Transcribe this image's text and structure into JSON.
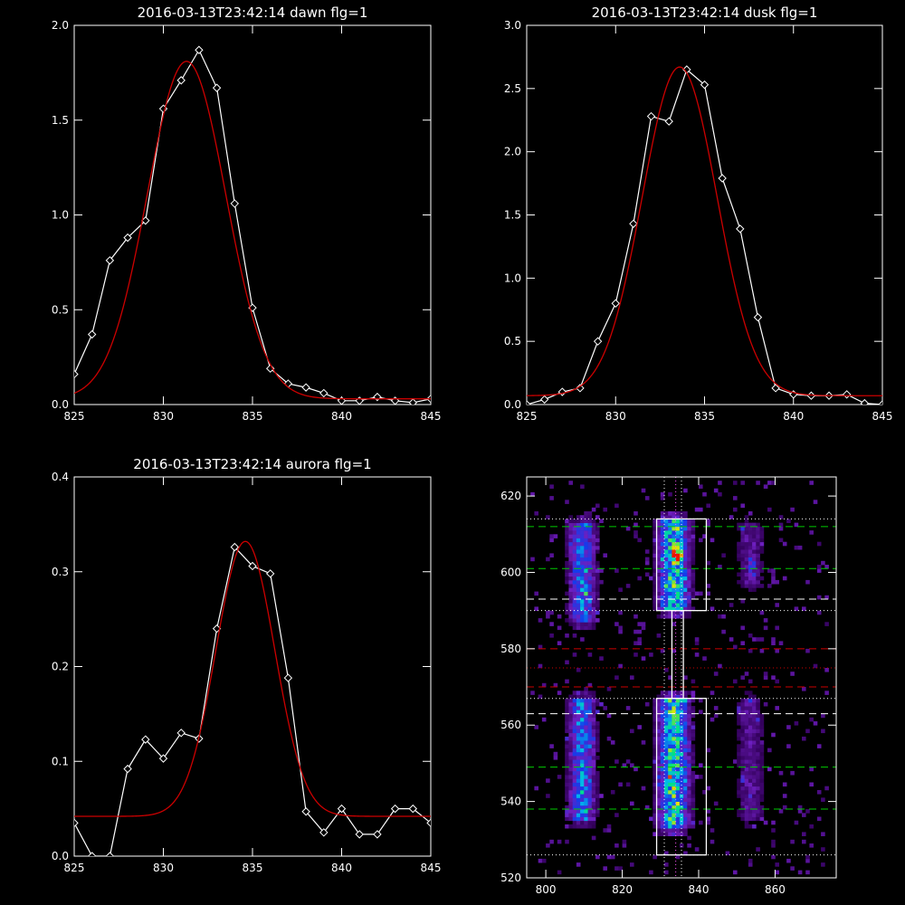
{
  "chart_data": [
    {
      "type": "line",
      "title": "2016-03-13T23:42:14 dawn flg=1",
      "xlim": [
        825,
        845
      ],
      "ylim": [
        0,
        2.0
      ],
      "xticks": [
        "825",
        "830",
        "835",
        "840",
        "845"
      ],
      "yticks": [
        "0.0",
        "0.5",
        "1.0",
        "1.5",
        "2.0"
      ],
      "series": [
        {
          "color": "#ffffff",
          "marker": "diamond",
          "x": [
            825,
            826,
            827,
            828,
            829,
            830,
            831,
            832,
            833,
            834,
            835,
            836,
            837,
            838,
            839,
            840,
            841,
            842,
            843,
            844,
            845
          ],
          "y": [
            0.16,
            0.37,
            0.76,
            0.88,
            0.97,
            1.56,
            1.71,
            1.87,
            1.67,
            1.06,
            0.51,
            0.19,
            0.11,
            0.09,
            0.06,
            0.02,
            0.02,
            0.04,
            0.02,
            0.01,
            0.03
          ]
        },
        {
          "color": "#cc0000",
          "fit": "gaussian",
          "amplitude": 1.78,
          "center": 831.3,
          "sigma": 2.2,
          "offset": 0.03
        }
      ]
    },
    {
      "type": "line",
      "title": "2016-03-13T23:42:14 dusk flg=1",
      "xlim": [
        825,
        845
      ],
      "ylim": [
        0,
        3.0
      ],
      "xticks": [
        "825",
        "830",
        "835",
        "840",
        "845"
      ],
      "yticks": [
        "0.0",
        "0.5",
        "1.0",
        "1.5",
        "2.0",
        "2.5",
        "3.0"
      ],
      "series": [
        {
          "color": "#ffffff",
          "marker": "diamond",
          "x": [
            825,
            826,
            827,
            828,
            829,
            830,
            831,
            832,
            833,
            834,
            835,
            836,
            837,
            838,
            839,
            840,
            841,
            842,
            843,
            844,
            845
          ],
          "y": [
            0.0,
            0.04,
            0.1,
            0.13,
            0.5,
            0.8,
            1.43,
            2.28,
            2.24,
            2.65,
            2.53,
            1.79,
            1.39,
            0.69,
            0.13,
            0.08,
            0.07,
            0.07,
            0.08,
            0.01,
            0.0
          ]
        },
        {
          "color": "#cc0000",
          "fit": "gaussian",
          "amplitude": 2.6,
          "center": 833.6,
          "sigma": 2.1,
          "offset": 0.07
        }
      ]
    },
    {
      "type": "line",
      "title": "2016-03-13T23:42:14 aurora flg=1",
      "xlim": [
        825,
        845
      ],
      "ylim": [
        0,
        0.4
      ],
      "xticks": [
        "825",
        "830",
        "835",
        "840",
        "845"
      ],
      "yticks": [
        "0.0",
        "0.1",
        "0.2",
        "0.3",
        "0.4"
      ],
      "series": [
        {
          "color": "#ffffff",
          "marker": "diamond",
          "x": [
            825,
            826,
            827,
            828,
            829,
            830,
            831,
            832,
            833,
            834,
            835,
            836,
            837,
            838,
            839,
            840,
            841,
            842,
            843,
            844,
            845
          ],
          "y": [
            0.035,
            0.0,
            0.0,
            0.092,
            0.123,
            0.103,
            0.13,
            0.124,
            0.24,
            0.326,
            0.306,
            0.298,
            0.188,
            0.047,
            0.025,
            0.05,
            0.023,
            0.023,
            0.05,
            0.05,
            0.035
          ]
        },
        {
          "color": "#cc0000",
          "fit": "gaussian",
          "amplitude": 0.29,
          "center": 834.6,
          "sigma": 1.65,
          "offset": 0.042
        }
      ]
    },
    {
      "type": "heatmap",
      "title": "",
      "xlim": [
        795,
        876
      ],
      "ylim": [
        520,
        625
      ],
      "xticks": [
        "800",
        "820",
        "840",
        "860"
      ],
      "yticks": [
        "520",
        "540",
        "560",
        "580",
        "600",
        "620"
      ],
      "bands": [
        {
          "x_center": 809,
          "x_sigma": 2.4,
          "y_ranges": [
            [
              587,
              612
            ],
            [
              535,
              566
            ]
          ],
          "peak": 0.55
        },
        {
          "x_center": 833,
          "x_sigma": 2.8,
          "y_ranges": [
            [
              590,
              613
            ],
            [
              533,
              566
            ]
          ],
          "peak": 0.75
        },
        {
          "x_center": 853,
          "x_sigma": 2.4,
          "y_ranges": [
            [
              596,
              612
            ],
            [
              535,
              566
            ]
          ],
          "peak": 0.25
        }
      ],
      "hotspot": {
        "x": 834,
        "y": 604
      },
      "boxes": [
        {
          "x": [
            829,
            842
          ],
          "y": [
            590,
            614
          ]
        },
        {
          "x": [
            829,
            842
          ],
          "y": [
            526,
            567
          ]
        }
      ],
      "bridge": {
        "x": [
          833,
          836
        ],
        "y": [
          567,
          590
        ]
      },
      "vlines": [
        {
          "x": 831,
          "color": "#ffffff",
          "style": "dotted"
        },
        {
          "x": 834,
          "color": "#ff55ff",
          "style": "dotted"
        },
        {
          "x": 835.5,
          "color": "#ffffff",
          "style": "dotted"
        }
      ],
      "hlines": [
        {
          "y": 612,
          "color": "#00cc00",
          "style": "dashed"
        },
        {
          "y": 601,
          "color": "#00cc00",
          "style": "dashed"
        },
        {
          "y": 593,
          "color": "#ffffff",
          "style": "dashed"
        },
        {
          "y": 580,
          "color": "#cc0000",
          "style": "dashed"
        },
        {
          "y": 570,
          "color": "#cc0000",
          "style": "dashed"
        },
        {
          "y": 563,
          "color": "#ffffff",
          "style": "dashed"
        },
        {
          "y": 549,
          "color": "#00cc00",
          "style": "dashed"
        },
        {
          "y": 538,
          "color": "#00cc00",
          "style": "dashed"
        },
        {
          "y": 614,
          "color": "#ffffff",
          "style": "dotted"
        },
        {
          "y": 590,
          "color": "#ffffff",
          "style": "dotted"
        },
        {
          "y": 575,
          "color": "#cc0000",
          "style": "dotted"
        },
        {
          "y": 567,
          "color": "#ffffff",
          "style": "dotted"
        },
        {
          "y": 526,
          "color": "#ffffff",
          "style": "dotted"
        }
      ]
    }
  ]
}
